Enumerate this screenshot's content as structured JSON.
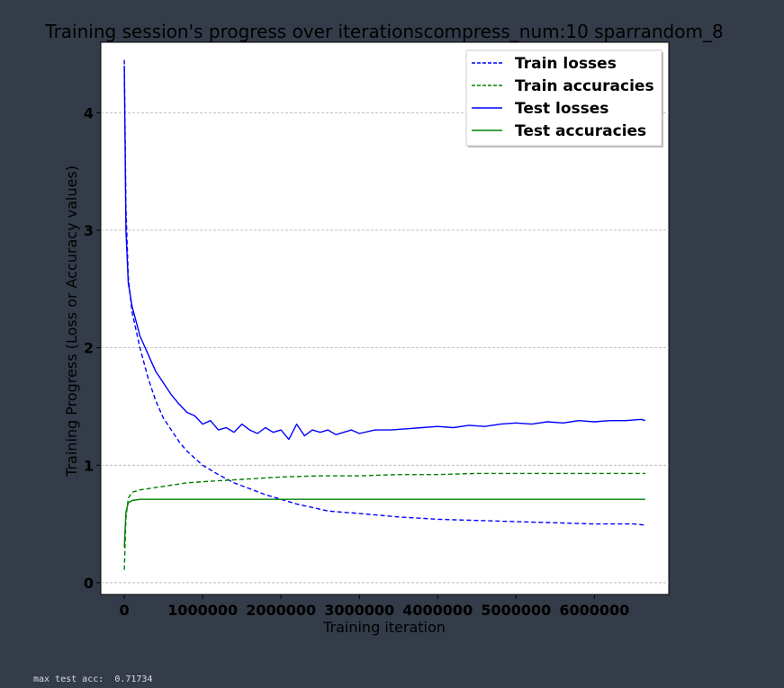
{
  "output": {
    "label": "max test acc:",
    "value": "0.71734"
  },
  "chart_data": {
    "type": "line",
    "title": "Training session's progress over iterationscompress_num:10 sparrandom_8",
    "xlabel": "Training iteration",
    "ylabel": "Training Progress (Loss or Accuracy values)",
    "xlim": [
      -300000,
      6950000
    ],
    "ylim": [
      -0.1,
      4.6
    ],
    "x_ticks": [
      0,
      1000000,
      2000000,
      3000000,
      4000000,
      5000000,
      6000000
    ],
    "x_tick_labels": [
      "0",
      "1000000",
      "2000000",
      "3000000",
      "4000000",
      "5000000",
      "6000000"
    ],
    "y_ticks": [
      0,
      1,
      2,
      3,
      4
    ],
    "y_tick_labels": [
      "0",
      "1",
      "2",
      "3",
      "4"
    ],
    "grid": "horizontal dashed",
    "legend_position": "top-right",
    "series": [
      {
        "name": "Train losses",
        "color": "#0000ff",
        "style": "dashed",
        "x": [
          0,
          20000,
          50000,
          100000,
          200000,
          300000,
          400000,
          500000,
          600000,
          700000,
          800000,
          900000,
          1000000,
          1200000,
          1400000,
          1600000,
          1800000,
          2000000,
          2200000,
          2400000,
          2600000,
          2800000,
          3000000,
          3500000,
          4000000,
          4500000,
          5000000,
          5500000,
          6000000,
          6500000,
          6650000
        ],
        "y": [
          4.45,
          3.2,
          2.6,
          2.3,
          2.0,
          1.75,
          1.55,
          1.4,
          1.3,
          1.2,
          1.12,
          1.06,
          1.0,
          0.92,
          0.85,
          0.8,
          0.75,
          0.71,
          0.67,
          0.64,
          0.61,
          0.6,
          0.59,
          0.56,
          0.54,
          0.53,
          0.52,
          0.51,
          0.5,
          0.5,
          0.49
        ]
      },
      {
        "name": "Train accuracies",
        "color": "#008000",
        "style": "dashed",
        "x": [
          0,
          20000,
          50000,
          100000,
          200000,
          400000,
          600000,
          800000,
          1000000,
          1500000,
          2000000,
          2500000,
          3000000,
          3500000,
          4000000,
          4500000,
          5000000,
          5500000,
          6000000,
          6500000,
          6650000
        ],
        "y": [
          0.11,
          0.55,
          0.72,
          0.77,
          0.79,
          0.81,
          0.83,
          0.85,
          0.86,
          0.88,
          0.9,
          0.91,
          0.91,
          0.92,
          0.92,
          0.93,
          0.93,
          0.93,
          0.93,
          0.93,
          0.93
        ]
      },
      {
        "name": "Test losses",
        "color": "#0000ff",
        "style": "solid",
        "x": [
          0,
          20000,
          50000,
          100000,
          200000,
          300000,
          400000,
          500000,
          600000,
          700000,
          800000,
          900000,
          1000000,
          1100000,
          1200000,
          1300000,
          1400000,
          1500000,
          1600000,
          1700000,
          1800000,
          1900000,
          2000000,
          2100000,
          2200000,
          2300000,
          2400000,
          2500000,
          2600000,
          2700000,
          2800000,
          2900000,
          3000000,
          3200000,
          3400000,
          3600000,
          3800000,
          4000000,
          4200000,
          4400000,
          4600000,
          4800000,
          5000000,
          5200000,
          5400000,
          5600000,
          5800000,
          6000000,
          6200000,
          6400000,
          6600000,
          6650000
        ],
        "y": [
          4.4,
          3.0,
          2.55,
          2.35,
          2.1,
          1.95,
          1.8,
          1.7,
          1.6,
          1.52,
          1.45,
          1.42,
          1.35,
          1.38,
          1.3,
          1.32,
          1.28,
          1.35,
          1.3,
          1.27,
          1.32,
          1.28,
          1.3,
          1.22,
          1.35,
          1.25,
          1.3,
          1.28,
          1.3,
          1.26,
          1.28,
          1.3,
          1.27,
          1.3,
          1.3,
          1.31,
          1.32,
          1.33,
          1.32,
          1.34,
          1.33,
          1.35,
          1.36,
          1.35,
          1.37,
          1.36,
          1.38,
          1.37,
          1.38,
          1.38,
          1.39,
          1.38
        ]
      },
      {
        "name": "Test accuracies",
        "color": "#008000",
        "style": "solid",
        "x": [
          0,
          20000,
          50000,
          100000,
          200000,
          400000,
          600000,
          800000,
          1000000,
          1500000,
          2000000,
          2500000,
          3000000,
          3500000,
          4000000,
          4500000,
          5000000,
          5500000,
          6000000,
          6500000,
          6650000
        ],
        "y": [
          0.3,
          0.6,
          0.68,
          0.7,
          0.71,
          0.71,
          0.71,
          0.71,
          0.71,
          0.71,
          0.71,
          0.71,
          0.71,
          0.71,
          0.71,
          0.71,
          0.71,
          0.71,
          0.71,
          0.71,
          0.71
        ]
      }
    ]
  }
}
